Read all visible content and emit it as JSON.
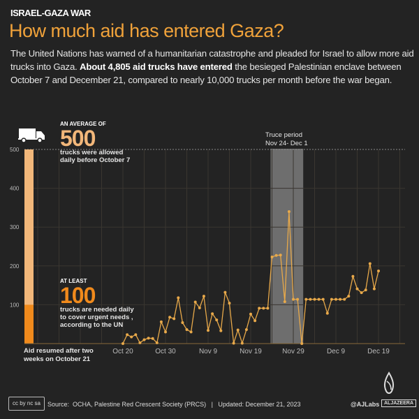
{
  "header": {
    "kicker": "ISRAEL-GAZA WAR",
    "title": "How much aid has entered Gaza?",
    "desc_part1": "The United Nations has warned of a humanitarian catastrophe and pleaded for Israel to allow more aid trucks into Gaza. ",
    "desc_bold": "About 4,805 aid trucks have entered",
    "desc_part2": " the besieged Palestinian enclave between October 7 and December 21, compared to nearly 10,000 trucks per month before the war began."
  },
  "annotations": {
    "avg_caption": "AN AVERAGE OF",
    "avg_value": "500",
    "avg_note_1": "trucks were allowed",
    "avg_note_2": "daily before October 7",
    "least_caption": "AT LEAST",
    "least_value": "100",
    "least_note_1": "trucks are needed daily",
    "least_note_2": "to cover urgent needs ,",
    "least_note_3": "according to the UN",
    "truce_1": "Truce period",
    "truce_2": "Nov 24- Dec 1",
    "resumed_1": "Aid resumed after two",
    "resumed_2": "weeks on October 21"
  },
  "footer": {
    "license": "cc by nc sa",
    "source": "Source:  OCHA, Palestine Red Crescent Society (PRCS)   |   Updated: December 21, 2023",
    "handle": "@AJLabs",
    "brand": "ALJAZEERA"
  },
  "icons": {
    "truck": "truck-icon",
    "logo": "aljazeera-logo"
  },
  "colors": {
    "background": "#232323",
    "accent": "#f0a23a",
    "line": "#e8a94a",
    "bar_light": "#f2b77a",
    "bar_dark": "#f08a1c",
    "truce": "#6e6e6e"
  },
  "chart_data": {
    "type": "line",
    "title": "",
    "xlabel": "",
    "ylabel": "",
    "ylim": [
      0,
      500
    ],
    "yticks": [
      100,
      200,
      300,
      400,
      500
    ],
    "start_date": "2023-10-20",
    "xticks": [
      {
        "label": "Oct 20",
        "day": 0
      },
      {
        "label": "Oct 30",
        "day": 10
      },
      {
        "label": "Nov 9",
        "day": 20
      },
      {
        "label": "Nov 19",
        "day": 30
      },
      {
        "label": "Nov 29",
        "day": 40
      },
      {
        "label": "Dec 9",
        "day": 50
      },
      {
        "label": "Dec 19",
        "day": 60
      }
    ],
    "values": [
      0,
      23,
      17,
      23,
      2,
      10,
      14,
      13,
      2,
      56,
      30,
      68,
      64,
      118,
      54,
      36,
      30,
      107,
      92,
      122,
      34,
      77,
      61,
      33,
      132,
      104,
      1,
      35,
      1,
      36,
      76,
      59,
      91,
      91,
      91,
      223,
      227,
      228,
      108,
      340,
      114,
      114,
      0,
      114,
      114,
      114,
      114,
      114,
      78,
      114,
      114,
      114,
      114,
      122,
      173,
      141,
      131,
      138,
      206,
      141,
      187
    ],
    "truce_period": {
      "start": "Nov 24",
      "end": "Dec 1"
    },
    "reference_bar": {
      "pre_war_daily": 500,
      "needed_daily": 100
    },
    "grid": true
  }
}
